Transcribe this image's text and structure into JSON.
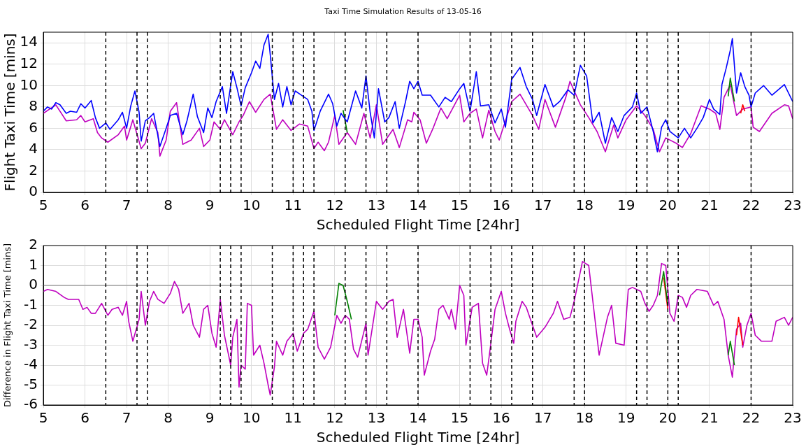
{
  "chart_data": [
    {
      "type": "line",
      "title": "Taxi Time Simulation Results of 13-05-16",
      "xlabel": "Scheduled Flight Time [24hr]",
      "ylabel": "Flight Taxi Time [mins]",
      "xlim": [
        5,
        23
      ],
      "xticks": [
        5,
        6,
        7,
        8,
        9,
        10,
        11,
        12,
        13,
        14,
        15,
        16,
        17,
        18,
        19,
        20,
        21,
        22,
        23
      ],
      "ylim": [
        0,
        15
      ],
      "yticks": [
        0,
        2,
        4,
        6,
        8,
        10,
        12,
        14
      ],
      "grid": true,
      "legend": false,
      "marker": "none",
      "line_style": "solid",
      "series": [
        {
          "color": "#0000ff",
          "x": [
            5.0,
            5.1,
            5.2,
            5.3,
            5.4,
            5.55,
            5.65,
            5.8,
            5.9,
            6.0,
            6.15,
            6.25,
            6.35,
            6.5,
            6.6,
            6.8,
            6.9,
            7.0,
            7.1,
            7.2,
            7.3,
            7.35,
            7.45,
            7.55,
            7.65,
            7.8,
            7.95,
            8.05,
            8.2,
            8.35,
            8.45,
            8.6,
            8.7,
            8.85,
            8.95,
            9.05,
            9.15,
            9.3,
            9.4,
            9.55,
            9.65,
            9.75,
            9.85,
            10.0,
            10.1,
            10.2,
            10.3,
            10.4,
            10.45,
            10.55,
            10.65,
            10.75,
            10.85,
            10.95,
            11.05,
            11.2,
            11.35,
            11.45,
            11.5,
            11.65,
            11.85,
            11.95,
            12.05,
            12.15,
            12.3,
            12.5,
            12.65,
            12.75,
            12.85,
            12.95,
            13.05,
            13.2,
            13.3,
            13.45,
            13.55,
            13.7,
            13.8,
            13.9,
            14.0,
            14.1,
            14.3,
            14.5,
            14.65,
            14.8,
            15.0,
            15.1,
            15.25,
            15.4,
            15.5,
            15.7,
            15.85,
            16.0,
            16.1,
            16.25,
            16.45,
            16.6,
            16.75,
            16.85,
            17.05,
            17.25,
            17.4,
            17.6,
            17.75,
            17.9,
            18.05,
            18.2,
            18.35,
            18.5,
            18.65,
            18.8,
            18.95,
            19.15,
            19.25,
            19.35,
            19.5,
            19.65,
            19.75,
            19.85,
            19.95,
            20.05,
            20.25,
            20.4,
            20.55,
            20.7,
            20.85,
            21.0,
            21.1,
            21.25,
            21.3,
            21.4,
            21.5,
            21.55,
            21.65,
            21.75,
            21.85,
            21.95,
            22.0,
            22.1,
            22.3,
            22.5,
            22.8,
            23.0
          ],
          "values": [
            7.6,
            8.0,
            7.8,
            8.4,
            8.2,
            7.4,
            7.6,
            7.5,
            8.3,
            7.9,
            8.6,
            7.0,
            6.0,
            6.5,
            5.9,
            6.8,
            7.5,
            6.0,
            8.1,
            9.5,
            7.5,
            4.8,
            6.7,
            7.0,
            7.4,
            4.3,
            6.0,
            7.2,
            7.4,
            5.4,
            6.7,
            9.2,
            7.1,
            5.6,
            7.9,
            7.0,
            8.5,
            9.9,
            7.4,
            11.3,
            9.8,
            8.1,
            9.8,
            11.2,
            12.3,
            11.6,
            13.8,
            14.8,
            12.9,
            8.7,
            10.2,
            8.0,
            9.9,
            8.2,
            9.5,
            9.1,
            8.7,
            7.6,
            5.8,
            7.6,
            9.2,
            8.3,
            6.2,
            7.4,
            6.6,
            9.5,
            7.9,
            10.9,
            7.5,
            5.1,
            9.7,
            6.6,
            7.0,
            8.5,
            6.0,
            8.5,
            10.4,
            9.7,
            10.4,
            9.1,
            9.1,
            8.0,
            8.9,
            8.5,
            9.7,
            10.2,
            7.6,
            11.3,
            8.1,
            8.2,
            6.5,
            7.8,
            6.1,
            10.6,
            11.7,
            9.9,
            8.7,
            7.2,
            10.1,
            8.0,
            8.5,
            9.6,
            9.1,
            11.9,
            10.9,
            6.5,
            7.5,
            4.6,
            7.0,
            5.7,
            7.2,
            8.0,
            9.3,
            7.4,
            8.0,
            5.7,
            3.8,
            6.1,
            6.8,
            5.7,
            5.1,
            6.0,
            5.1,
            6.0,
            7.0,
            8.7,
            7.8,
            7.3,
            10.1,
            11.6,
            13.3,
            14.4,
            9.3,
            11.2,
            9.9,
            9.1,
            8.0,
            9.3,
            10.0,
            9.1,
            10.1,
            8.5
          ]
        },
        {
          "color": "#008000",
          "x": [
            12.2,
            12.3,
            13.0,
            21.45,
            21.5,
            21.6
          ],
          "values": [
            7.7,
            5.6,
            null,
            9.0,
            10.7,
            8.5
          ]
        },
        {
          "color": "#ff0000",
          "x": [
            21.75,
            21.8,
            21.85
          ],
          "values": [
            7.4,
            8.2,
            7.6
          ]
        },
        {
          "color": "#bf00bf",
          "x": [
            5.0,
            5.3,
            5.55,
            5.8,
            5.9,
            6.0,
            6.2,
            6.3,
            6.4,
            6.55,
            6.8,
            6.95,
            7.0,
            7.15,
            7.35,
            7.45,
            7.6,
            7.75,
            7.8,
            7.95,
            8.05,
            8.2,
            8.35,
            8.55,
            8.75,
            8.85,
            9.0,
            9.1,
            9.25,
            9.35,
            9.55,
            9.7,
            9.8,
            9.95,
            10.1,
            10.3,
            10.45,
            10.6,
            10.75,
            10.95,
            11.15,
            11.35,
            11.5,
            11.6,
            11.75,
            11.85,
            12.0,
            12.1,
            12.3,
            12.5,
            12.7,
            12.85,
            13.0,
            13.15,
            13.4,
            13.55,
            13.75,
            13.85,
            13.9,
            14.05,
            14.2,
            14.35,
            14.55,
            14.7,
            15.0,
            15.1,
            15.25,
            15.4,
            15.55,
            15.7,
            15.85,
            15.95,
            16.05,
            16.25,
            16.45,
            16.75,
            16.9,
            17.05,
            17.3,
            17.55,
            17.65,
            17.9,
            18.1,
            18.3,
            18.5,
            18.7,
            18.8,
            19.0,
            19.25,
            19.45,
            19.65,
            19.8,
            19.95,
            20.2,
            20.35,
            20.55,
            20.8,
            21.0,
            21.15,
            21.25,
            21.35,
            21.5,
            21.65,
            21.8,
            22.0,
            22.05,
            22.2,
            22.5,
            22.8,
            22.9,
            23.0
          ],
          "values": [
            7.4,
            8.2,
            6.7,
            6.8,
            7.2,
            6.6,
            6.9,
            5.6,
            5.1,
            4.7,
            5.4,
            6.2,
            4.9,
            6.8,
            4.1,
            4.6,
            6.9,
            5.6,
            3.4,
            4.9,
            7.6,
            8.4,
            4.5,
            4.9,
            6.0,
            4.3,
            4.9,
            6.6,
            5.9,
            6.8,
            5.4,
            6.6,
            7.2,
            8.5,
            7.5,
            8.7,
            9.2,
            5.9,
            6.8,
            5.8,
            6.4,
            6.2,
            4.1,
            4.7,
            3.9,
            4.7,
            7.2,
            4.5,
            5.6,
            4.5,
            7.4,
            5.1,
            8.2,
            4.5,
            5.9,
            4.2,
            6.8,
            6.6,
            7.5,
            6.8,
            4.6,
            5.9,
            7.9,
            6.9,
            9.1,
            6.6,
            7.4,
            7.8,
            5.1,
            7.7,
            5.7,
            4.9,
            6.1,
            8.5,
            9.2,
            7.2,
            5.9,
            8.7,
            6.1,
            8.9,
            10.4,
            8.2,
            7.0,
            5.7,
            3.8,
            6.3,
            5.1,
            6.8,
            8.1,
            7.2,
            5.9,
            3.8,
            5.1,
            4.6,
            4.2,
            5.5,
            8.1,
            7.8,
            7.4,
            5.9,
            8.9,
            10.1,
            7.2,
            7.8,
            8.0,
            6.1,
            5.7,
            7.4,
            8.2,
            8.1,
            6.9
          ]
        }
      ],
      "ref_lines": [
        {
          "axis": "x",
          "value": 6.5,
          "color": "#000000",
          "line_style": "dashed"
        },
        {
          "axis": "x",
          "value": 7.25,
          "color": "#000000",
          "line_style": "dashed"
        },
        {
          "axis": "x",
          "value": 7.5,
          "color": "#000000",
          "line_style": "dashed"
        },
        {
          "axis": "x",
          "value": 9.25,
          "color": "#000000",
          "line_style": "dashed"
        },
        {
          "axis": "x",
          "value": 9.5,
          "color": "#000000",
          "line_style": "dashed"
        },
        {
          "axis": "x",
          "value": 9.75,
          "color": "#000000",
          "line_style": "dashed"
        },
        {
          "axis": "x",
          "value": 10.5,
          "color": "#000000",
          "line_style": "dashed"
        },
        {
          "axis": "x",
          "value": 11,
          "color": "#000000",
          "line_style": "dashed"
        },
        {
          "axis": "x",
          "value": 11.25,
          "color": "#000000",
          "line_style": "dashed"
        },
        {
          "axis": "x",
          "value": 11.5,
          "color": "#000000",
          "line_style": "dashed"
        },
        {
          "axis": "x",
          "value": 12.25,
          "color": "#000000",
          "line_style": "dashed"
        },
        {
          "axis": "x",
          "value": 12.75,
          "color": "#000000",
          "line_style": "dashed"
        },
        {
          "axis": "x",
          "value": 13.25,
          "color": "#000000",
          "line_style": "dashed"
        },
        {
          "axis": "x",
          "value": 14,
          "color": "#000000",
          "line_style": "dashed"
        },
        {
          "axis": "x",
          "value": 15.25,
          "color": "#000000",
          "line_style": "dashed"
        },
        {
          "axis": "x",
          "value": 15.75,
          "color": "#000000",
          "line_style": "dashed"
        },
        {
          "axis": "x",
          "value": 16.25,
          "color": "#000000",
          "line_style": "dashed"
        },
        {
          "axis": "x",
          "value": 16.75,
          "color": "#000000",
          "line_style": "dashed"
        },
        {
          "axis": "x",
          "value": 17.75,
          "color": "#000000",
          "line_style": "dashed"
        },
        {
          "axis": "x",
          "value": 18,
          "color": "#000000",
          "line_style": "dashed"
        },
        {
          "axis": "x",
          "value": 19.25,
          "color": "#000000",
          "line_style": "dashed"
        },
        {
          "axis": "x",
          "value": 19.5,
          "color": "#000000",
          "line_style": "dashed"
        },
        {
          "axis": "x",
          "value": 20,
          "color": "#000000",
          "line_style": "dashed"
        },
        {
          "axis": "x",
          "value": 20.25,
          "color": "#000000",
          "line_style": "dashed"
        },
        {
          "axis": "x",
          "value": 22,
          "color": "#000000",
          "line_style": "dashed"
        }
      ]
    },
    {
      "type": "line",
      "xlabel": "Scheduled Flight Time [24hr]",
      "ylabel": "Difference in Flight Taxi Time [mins]",
      "xlim": [
        5,
        23
      ],
      "xticks": [
        5,
        6,
        7,
        8,
        9,
        10,
        11,
        12,
        13,
        14,
        15,
        16,
        17,
        18,
        19,
        20,
        21,
        22,
        23
      ],
      "ylim": [
        -6,
        2
      ],
      "yticks": [
        -6,
        -5,
        -4,
        -3,
        -2,
        -1,
        0,
        1,
        2
      ],
      "grid": true,
      "legend": false,
      "marker": "none",
      "line_style": "solid",
      "series": [
        {
          "color": "#008000",
          "x": [
            12.0,
            12.1,
            12.2,
            12.3,
            12.4,
            12.5,
            19.8,
            19.9,
            20.0,
            21.0,
            21.45,
            21.5,
            21.6
          ],
          "values": [
            -1.5,
            0.1,
            0.0,
            -0.8,
            -1.7,
            null,
            -0.5,
            0.7,
            -1.0,
            null,
            -3.5,
            -2.8,
            -4.0
          ]
        },
        {
          "color": "#ff0000",
          "x": [
            19.9,
            20.0,
            20.5,
            21.65,
            21.7,
            21.8
          ],
          "values": [
            0.4,
            -1.2,
            null,
            -2.5,
            -1.6,
            -3.0
          ]
        },
        {
          "color": "#bf00bf",
          "x": [
            5.0,
            5.1,
            5.3,
            5.5,
            5.6,
            5.85,
            5.95,
            6.05,
            6.15,
            6.25,
            6.4,
            6.55,
            6.65,
            6.8,
            6.9,
            7.0,
            7.05,
            7.15,
            7.3,
            7.35,
            7.45,
            7.55,
            7.65,
            7.75,
            7.9,
            8.05,
            8.15,
            8.25,
            8.35,
            8.5,
            8.6,
            8.75,
            8.85,
            8.95,
            9.05,
            9.15,
            9.25,
            9.35,
            9.5,
            9.55,
            9.65,
            9.7,
            9.75,
            9.85,
            9.9,
            10.0,
            10.05,
            10.2,
            10.3,
            10.4,
            10.45,
            10.55,
            10.6,
            10.75,
            10.85,
            11.0,
            11.1,
            11.25,
            11.35,
            11.5,
            11.6,
            11.75,
            11.9,
            12.05,
            12.15,
            12.25,
            12.35,
            12.45,
            12.55,
            12.75,
            12.8,
            13.0,
            13.15,
            13.3,
            13.4,
            13.5,
            13.65,
            13.8,
            13.9,
            14.0,
            14.1,
            14.15,
            14.3,
            14.4,
            14.5,
            14.6,
            14.75,
            14.8,
            14.9,
            15.0,
            15.1,
            15.15,
            15.3,
            15.45,
            15.55,
            15.65,
            15.75,
            15.85,
            16.0,
            16.1,
            16.2,
            16.3,
            16.35,
            16.5,
            16.6,
            16.75,
            16.85,
            17.05,
            17.25,
            17.35,
            17.5,
            17.65,
            17.75,
            17.95,
            18.1,
            18.2,
            18.35,
            18.55,
            18.65,
            18.75,
            18.95,
            19.05,
            19.15,
            19.35,
            19.45,
            19.55,
            19.65,
            19.75,
            19.85,
            19.95,
            20.05,
            20.15,
            20.25,
            20.35,
            20.45,
            20.55,
            20.7,
            20.95,
            21.1,
            21.2,
            21.35,
            21.45,
            21.55,
            21.65,
            21.75,
            21.8,
            21.9,
            22.0,
            22.1,
            22.25,
            22.5,
            22.6,
            22.8,
            22.9,
            23.0
          ],
          "values": [
            -0.3,
            -0.2,
            -0.3,
            -0.6,
            -0.7,
            -0.7,
            -1.2,
            -1.1,
            -1.4,
            -1.4,
            -0.9,
            -1.5,
            -1.2,
            -1.1,
            -1.5,
            -0.8,
            -1.8,
            -2.8,
            -1.7,
            -0.3,
            -2.0,
            -0.8,
            -0.3,
            -0.7,
            -0.9,
            -0.4,
            0.2,
            -0.2,
            -1.4,
            -0.9,
            -2.0,
            -2.6,
            -1.2,
            -1.0,
            -2.4,
            -3.1,
            -0.7,
            -2.5,
            -4.0,
            -2.6,
            -1.7,
            -5.1,
            -4.0,
            -4.2,
            -0.9,
            -1.0,
            -3.5,
            -3.0,
            -3.9,
            -5.0,
            -5.5,
            -4.1,
            -2.8,
            -3.5,
            -2.8,
            -2.4,
            -3.3,
            -2.4,
            -2.2,
            -1.3,
            -3.1,
            -3.7,
            -3.1,
            -1.5,
            -1.9,
            -1.5,
            -1.7,
            -3.2,
            -3.6,
            -1.9,
            -3.5,
            -0.8,
            -1.2,
            -0.8,
            -0.7,
            -2.6,
            -1.2,
            -3.4,
            -1.7,
            -1.7,
            -2.6,
            -4.5,
            -3.3,
            -2.7,
            -1.2,
            -1.0,
            -1.7,
            -1.2,
            -2.2,
            0.0,
            -0.5,
            -3.0,
            -1.1,
            -0.9,
            -3.9,
            -4.5,
            -2.9,
            -1.2,
            -0.3,
            -1.4,
            -2.2,
            -2.9,
            -1.8,
            -0.8,
            -1.1,
            -2.0,
            -2.6,
            -2.1,
            -1.4,
            -0.8,
            -1.7,
            -1.6,
            -0.8,
            1.2,
            1.0,
            -0.8,
            -3.5,
            -1.6,
            -1.0,
            -2.9,
            -3.0,
            -0.2,
            -0.1,
            -0.3,
            -0.9,
            -1.3,
            -1.0,
            -0.5,
            1.1,
            1.0,
            -1.4,
            -1.8,
            -0.5,
            -0.6,
            -1.1,
            -0.5,
            -0.2,
            -0.3,
            -1.0,
            -0.8,
            -1.7,
            -3.5,
            -4.6,
            -2.2,
            -1.9,
            -3.1,
            -2.0,
            -1.4,
            -2.5,
            -2.8,
            -2.8,
            -1.8,
            -1.6,
            -2.0,
            -1.6
          ]
        }
      ],
      "ref_lines": [
        {
          "axis": "y",
          "value": 0,
          "color": "#808080",
          "line_style": "solid"
        },
        {
          "axis": "x",
          "value": 6.5,
          "color": "#000000",
          "line_style": "dashed"
        },
        {
          "axis": "x",
          "value": 7.25,
          "color": "#000000",
          "line_style": "dashed"
        },
        {
          "axis": "x",
          "value": 7.5,
          "color": "#000000",
          "line_style": "dashed"
        },
        {
          "axis": "x",
          "value": 9.25,
          "color": "#000000",
          "line_style": "dashed"
        },
        {
          "axis": "x",
          "value": 9.5,
          "color": "#000000",
          "line_style": "dashed"
        },
        {
          "axis": "x",
          "value": 9.75,
          "color": "#000000",
          "line_style": "dashed"
        },
        {
          "axis": "x",
          "value": 10.5,
          "color": "#000000",
          "line_style": "dashed"
        },
        {
          "axis": "x",
          "value": 11,
          "color": "#000000",
          "line_style": "dashed"
        },
        {
          "axis": "x",
          "value": 11.25,
          "color": "#000000",
          "line_style": "dashed"
        },
        {
          "axis": "x",
          "value": 11.5,
          "color": "#000000",
          "line_style": "dashed"
        },
        {
          "axis": "x",
          "value": 12.25,
          "color": "#000000",
          "line_style": "dashed"
        },
        {
          "axis": "x",
          "value": 12.75,
          "color": "#000000",
          "line_style": "dashed"
        },
        {
          "axis": "x",
          "value": 13.25,
          "color": "#000000",
          "line_style": "dashed"
        },
        {
          "axis": "x",
          "value": 14,
          "color": "#000000",
          "line_style": "dashed"
        },
        {
          "axis": "x",
          "value": 15.25,
          "color": "#000000",
          "line_style": "dashed"
        },
        {
          "axis": "x",
          "value": 15.75,
          "color": "#000000",
          "line_style": "dashed"
        },
        {
          "axis": "x",
          "value": 16.25,
          "color": "#000000",
          "line_style": "dashed"
        },
        {
          "axis": "x",
          "value": 16.75,
          "color": "#000000",
          "line_style": "dashed"
        },
        {
          "axis": "x",
          "value": 17.75,
          "color": "#000000",
          "line_style": "dashed"
        },
        {
          "axis": "x",
          "value": 18,
          "color": "#000000",
          "line_style": "dashed"
        },
        {
          "axis": "x",
          "value": 19.25,
          "color": "#000000",
          "line_style": "dashed"
        },
        {
          "axis": "x",
          "value": 19.5,
          "color": "#000000",
          "line_style": "dashed"
        },
        {
          "axis": "x",
          "value": 20,
          "color": "#000000",
          "line_style": "dashed"
        },
        {
          "axis": "x",
          "value": 20.25,
          "color": "#000000",
          "line_style": "dashed"
        },
        {
          "axis": "x",
          "value": 22,
          "color": "#000000",
          "line_style": "dashed"
        }
      ]
    }
  ]
}
